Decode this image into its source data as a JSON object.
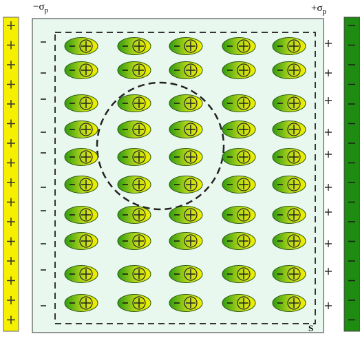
{
  "labels": {
    "left_charge": {
      "symbol": "−σ",
      "subscript": "p"
    },
    "right_charge": {
      "symbol": "+σ",
      "subscript": "p"
    },
    "surface": "S"
  }
}
